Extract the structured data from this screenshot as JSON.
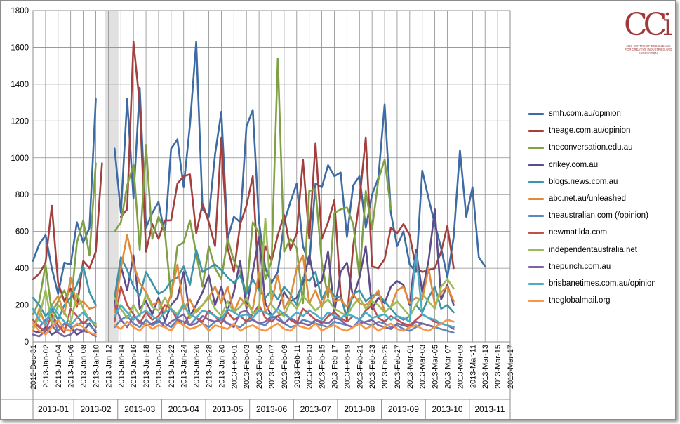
{
  "chart_data": {
    "type": "line",
    "ylim": [
      0,
      1800
    ],
    "yticks": [
      0,
      200,
      400,
      600,
      800,
      1000,
      1200,
      1400,
      1600,
      1800
    ],
    "x_tick_labels": [
      "2012-Dec-31",
      "2013-Jan-02",
      "2013-Jan-04",
      "2013-Jan-06",
      "2013-Jan-08",
      "2013-Jan-10",
      "2013-Jan-12",
      "2013-Jan-14",
      "2013-Jan-16",
      "2013-Jan-18",
      "2013-Jan-20",
      "2013-Jan-22",
      "2013-Jan-24",
      "2013-Jan-26",
      "2013-Jan-28",
      "2013-Jan-30",
      "2013-Feb-01",
      "2013-Feb-03",
      "2013-Feb-05",
      "2013-Feb-07",
      "2013-Feb-09",
      "2013-Feb-11",
      "2013-Feb-13",
      "2013-Feb-15",
      "2013-Feb-17",
      "2013-Feb-19",
      "2013-Feb-21",
      "2013-Feb-23",
      "2013-Feb-25",
      "2013-Feb-27",
      "2013-Mar-01",
      "2013-Mar-03",
      "2013-Mar-05",
      "2013-Mar-07",
      "2013-Mar-09",
      "2013-Mar-11",
      "2013-Mar-13",
      "2013-Mar-15",
      "2013-Mar-17"
    ],
    "week_groups": [
      "2013-01",
      "2013-02",
      "2013-03",
      "2013-04",
      "2013-05",
      "2013-06",
      "2013-07",
      "2013-08",
      "2013-09",
      "2013-10",
      "2013-11"
    ],
    "week_boundaries": [
      "2012-Dec-31",
      "2013-Jan-07",
      "2013-Jan-14",
      "2013-Jan-21",
      "2013-Jan-28",
      "2013-Feb-04",
      "2013-Feb-11",
      "2013-Feb-18",
      "2013-Feb-25",
      "2013-Mar-04",
      "2013-Mar-11",
      "2013-Mar-18"
    ],
    "highlight_day": "2013-Jan-12",
    "grid": true,
    "legend_position": "right",
    "series": [
      {
        "name": "smh.com.au/opinion",
        "color": "#3d6ba4",
        "values": [
          440,
          530,
          580,
          400,
          260,
          430,
          420,
          650,
          540,
          620,
          1320,
          null,
          null,
          1050,
          700,
          1320,
          780,
          1380,
          620,
          700,
          760,
          580,
          1050,
          1100,
          840,
          1180,
          1630,
          720,
          680,
          1020,
          1250,
          560,
          680,
          650,
          1170,
          1260,
          650,
          400,
          320,
          380,
          650,
          760,
          860,
          520,
          420,
          860,
          840,
          960,
          900,
          920,
          570,
          850,
          900,
          620,
          800,
          890,
          1290,
          700,
          520,
          600,
          420,
          380,
          930,
          780,
          640,
          510,
          350,
          570,
          1040,
          680,
          840,
          460,
          410
        ]
      },
      {
        "name": "theage.com.au/opinion",
        "color": "#a3403d",
        "values": [
          340,
          370,
          430,
          740,
          320,
          220,
          290,
          190,
          440,
          400,
          490,
          970,
          null,
          null,
          680,
          720,
          1630,
          1290,
          490,
          640,
          560,
          660,
          660,
          860,
          900,
          910,
          590,
          750,
          650,
          520,
          1110,
          510,
          380,
          640,
          740,
          900,
          280,
          520,
          440,
          580,
          690,
          500,
          590,
          990,
          560,
          1080,
          560,
          650,
          770,
          260,
          120,
          520,
          770,
          1110,
          410,
          400,
          450,
          620,
          590,
          640,
          580,
          400,
          380,
          390,
          400,
          490,
          630,
          400
        ]
      },
      {
        "name": "theconversation.edu.au",
        "color": "#7fa043",
        "values": [
          150,
          220,
          420,
          160,
          220,
          280,
          190,
          540,
          660,
          470,
          970,
          null,
          null,
          600,
          650,
          850,
          960,
          500,
          1070,
          560,
          680,
          600,
          240,
          520,
          540,
          660,
          480,
          300,
          520,
          400,
          340,
          560,
          440,
          380,
          260,
          650,
          590,
          340,
          440,
          1540,
          490,
          560,
          510,
          210,
          820,
          830,
          430,
          240,
          700,
          720,
          730,
          640,
          350,
          820,
          610,
          880,
          990,
          720
        ]
      },
      {
        "name": "crikey.com.au",
        "color": "#5e4b8a",
        "values": [
          60,
          50,
          80,
          40,
          60,
          100,
          80,
          40,
          60,
          100,
          50,
          null,
          null,
          200,
          410,
          280,
          470,
          180,
          220,
          150,
          240,
          110,
          200,
          240,
          380,
          140,
          200,
          270,
          360,
          200,
          300,
          170,
          270,
          440,
          180,
          380,
          570,
          210,
          140,
          180,
          270,
          220,
          240,
          320,
          470,
          300,
          330,
          490,
          160,
          380,
          430,
          240,
          350,
          520,
          180,
          240,
          210,
          300,
          330,
          310,
          200,
          500,
          270,
          440,
          720,
          230,
          310,
          200
        ]
      },
      {
        "name": "blogs.news.com.au",
        "color": "#3a95a8",
        "values": [
          240,
          200,
          140,
          180,
          120,
          200,
          240,
          310,
          410,
          270,
          200,
          null,
          null,
          240,
          460,
          390,
          300,
          250,
          380,
          320,
          260,
          280,
          330,
          350,
          410,
          310,
          500,
          380,
          400,
          420,
          390,
          350,
          320,
          360,
          260,
          340,
          280,
          240,
          280,
          230,
          300,
          260,
          200,
          350,
          330,
          380,
          230,
          300,
          250,
          240,
          140,
          260,
          280,
          220,
          250,
          260,
          220,
          180,
          140,
          120,
          140,
          200,
          160,
          240,
          300,
          180,
          200,
          160
        ]
      },
      {
        "name": "abc.net.au/unleashed",
        "color": "#e08a3a",
        "values": [
          60,
          180,
          90,
          200,
          250,
          150,
          350,
          200,
          220,
          180,
          190,
          null,
          null,
          160,
          400,
          580,
          420,
          320,
          270,
          200,
          220,
          160,
          260,
          420,
          180,
          230,
          160,
          200,
          240,
          300,
          210,
          300,
          160,
          240,
          200,
          180,
          380,
          160,
          220,
          360,
          180,
          240,
          400,
          470,
          210,
          280,
          190,
          300,
          220,
          230,
          190,
          260,
          210,
          200,
          230,
          280,
          160,
          190,
          280,
          300,
          210,
          240,
          230,
          400,
          200,
          270,
          300,
          220
        ]
      },
      {
        "name": "theaustralian.com (/opinion)",
        "color": "#5c86bf",
        "values": [
          100,
          80,
          120,
          140,
          60,
          100,
          80,
          90,
          110,
          90,
          60,
          null,
          null,
          80,
          120,
          140,
          100,
          80,
          120,
          90,
          110,
          100,
          80,
          120,
          110,
          90,
          130,
          100,
          80,
          110,
          120,
          100,
          90,
          80,
          110,
          120,
          100,
          90,
          130,
          140,
          100,
          80,
          90,
          120,
          110,
          100,
          90,
          80,
          110,
          100,
          90,
          80,
          120,
          100,
          90,
          110,
          100,
          80,
          90,
          70,
          60,
          80,
          100,
          90,
          80,
          70,
          60,
          50
        ]
      },
      {
        "name": "newmatilda.com",
        "color": "#c0504d",
        "values": [
          120,
          80,
          60,
          150,
          90,
          50,
          180,
          140,
          100,
          130,
          80,
          null,
          null,
          110,
          300,
          200,
          150,
          100,
          160,
          120,
          140,
          200,
          180,
          120,
          90,
          150,
          130,
          110,
          170,
          140,
          100,
          160,
          120,
          140,
          110,
          150,
          200,
          130,
          110,
          140,
          160,
          120,
          100,
          180,
          150,
          120,
          100,
          140,
          160,
          130,
          110,
          140,
          120,
          170,
          200,
          130,
          110,
          140,
          120,
          100,
          90,
          120,
          150,
          130,
          110,
          100,
          90,
          80
        ]
      },
      {
        "name": "independentaustralia.net",
        "color": "#9bbb59",
        "values": [
          80,
          130,
          280,
          100,
          200,
          160,
          100,
          260,
          180,
          120,
          90,
          null,
          null,
          240,
          180,
          130,
          200,
          140,
          260,
          190,
          170,
          240,
          180,
          150,
          210,
          130,
          170,
          200,
          250,
          180,
          140,
          220,
          160,
          190,
          240,
          150,
          180,
          670,
          200,
          160,
          140,
          220,
          180,
          250,
          210,
          170,
          200,
          230,
          180,
          160,
          140,
          200,
          240,
          180,
          220,
          200,
          160,
          190,
          220,
          180,
          140,
          200,
          260,
          220,
          180,
          300,
          340,
          290
        ]
      },
      {
        "name": "thepunch.com.au",
        "color": "#8064a2",
        "values": [
          40,
          30,
          60,
          90,
          50,
          30,
          40,
          70,
          60,
          50,
          30,
          null,
          null,
          200,
          120,
          80,
          140,
          110,
          90,
          100,
          120,
          80,
          110,
          130,
          150,
          90,
          100,
          140,
          120,
          110,
          130,
          100,
          80,
          160,
          170,
          120,
          100,
          110,
          140,
          120,
          100,
          130,
          110,
          100,
          90,
          120,
          110,
          100,
          130,
          120,
          90,
          80,
          100,
          110,
          120,
          90,
          80,
          70,
          100,
          90,
          80,
          110,
          100,
          90,
          80,
          100,
          90,
          70
        ]
      },
      {
        "name": "brisbanetimes.com.au/opinion",
        "color": "#4bacc6",
        "values": [
          180,
          120,
          90,
          200,
          150,
          110,
          90,
          130,
          160,
          120,
          100,
          null,
          null,
          140,
          200,
          160,
          120,
          150,
          170,
          140,
          120,
          160,
          180,
          140,
          200,
          150,
          130,
          170,
          160,
          140,
          120,
          180,
          160,
          140,
          150,
          130,
          170,
          160,
          140,
          180,
          150,
          130,
          160,
          140,
          170,
          150,
          120,
          160,
          140,
          130,
          150,
          140,
          120,
          160,
          130,
          140,
          150,
          120,
          140,
          130,
          110,
          480,
          150,
          130,
          120,
          100,
          90,
          80
        ]
      },
      {
        "name": "theglobalmail.org",
        "color": "#f79646",
        "values": [
          100,
          60,
          40,
          80,
          120,
          70,
          60,
          100,
          80,
          50,
          40,
          null,
          null,
          90,
          70,
          110,
          80,
          60,
          100,
          70,
          90,
          80,
          60,
          110,
          90,
          70,
          80,
          100,
          60,
          90,
          80,
          70,
          100,
          60,
          80,
          90,
          70,
          60,
          80,
          100,
          70,
          60,
          90,
          80,
          70,
          100,
          60,
          80,
          90,
          70,
          60,
          80,
          100,
          70,
          90,
          60,
          80,
          100,
          70,
          60,
          80,
          90,
          70,
          60,
          80,
          100,
          120,
          110
        ]
      }
    ]
  },
  "logo": {
    "mark": "CCi",
    "text": "ARC CENTRE OF EXCELLENCE FOR CREATIVE INDUSTRIES AND INNOVATION"
  }
}
